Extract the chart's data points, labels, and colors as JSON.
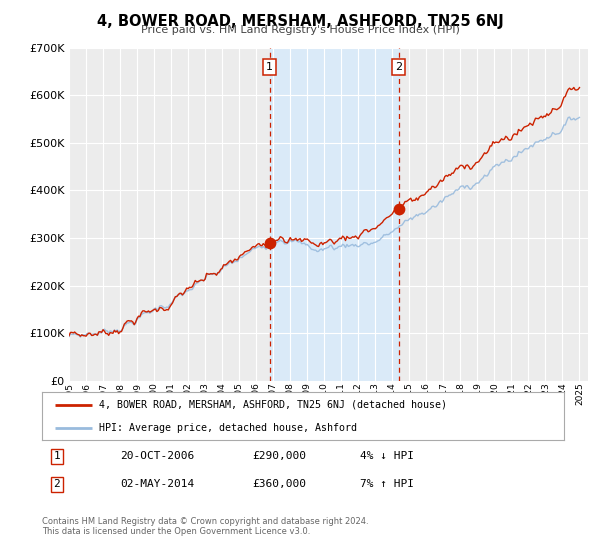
{
  "title": "4, BOWER ROAD, MERSHAM, ASHFORD, TN25 6NJ",
  "subtitle": "Price paid vs. HM Land Registry's House Price Index (HPI)",
  "ylim": [
    0,
    700000
  ],
  "xlim": [
    1995.0,
    2025.5
  ],
  "yticks": [
    0,
    100000,
    200000,
    300000,
    400000,
    500000,
    600000,
    700000
  ],
  "ytick_labels": [
    "£0",
    "£100K",
    "£200K",
    "£300K",
    "£400K",
    "£500K",
    "£600K",
    "£700K"
  ],
  "xticks": [
    1995,
    1996,
    1997,
    1998,
    1999,
    2000,
    2001,
    2002,
    2003,
    2004,
    2005,
    2006,
    2007,
    2008,
    2009,
    2010,
    2011,
    2012,
    2013,
    2014,
    2015,
    2016,
    2017,
    2018,
    2019,
    2020,
    2021,
    2022,
    2023,
    2024,
    2025
  ],
  "background_color": "#ffffff",
  "plot_bg_color": "#ececec",
  "grid_color": "#ffffff",
  "red_line_color": "#cc2200",
  "blue_line_color": "#99bbdd",
  "shade_color": "#daeaf8",
  "point1_x": 2006.8,
  "point1_y": 290000,
  "point2_x": 2014.37,
  "point2_y": 360000,
  "vline1_x": 2006.8,
  "vline2_x": 2014.37,
  "label1_text": "1",
  "label2_text": "2",
  "legend_line1": "4, BOWER ROAD, MERSHAM, ASHFORD, TN25 6NJ (detached house)",
  "legend_line2": "HPI: Average price, detached house, Ashford",
  "ann1_label": "1",
  "ann1_date": "20-OCT-2006",
  "ann1_price": "£290,000",
  "ann1_hpi": "4% ↓ HPI",
  "ann2_label": "2",
  "ann2_date": "02-MAY-2014",
  "ann2_price": "£360,000",
  "ann2_hpi": "7% ↑ HPI",
  "footer1": "Contains HM Land Registry data © Crown copyright and database right 2024.",
  "footer2": "This data is licensed under the Open Government Licence v3.0."
}
